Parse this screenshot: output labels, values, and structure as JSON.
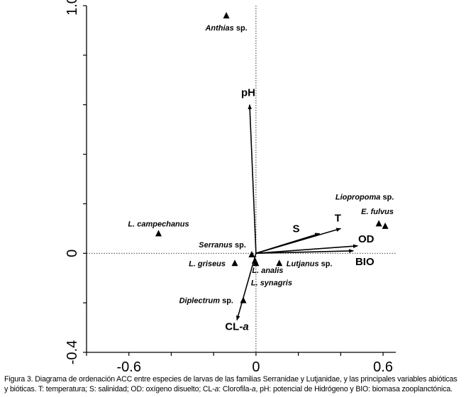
{
  "chart_data": {
    "type": "scatter",
    "subtype": "CCA ordination biplot",
    "xlim": [
      -0.8,
      0.66
    ],
    "ylim": [
      -0.4,
      1.0
    ],
    "x_ticks": [
      {
        "value": -0.6,
        "label": "-0.6"
      },
      {
        "value": 0,
        "label": "0"
      },
      {
        "value": 0.6,
        "label": "0.6"
      }
    ],
    "y_ticks": [
      {
        "value": -0.4,
        "label": "-0.4"
      },
      {
        "value": 0,
        "label": "0"
      },
      {
        "value": 1.0,
        "label": "1.0"
      }
    ],
    "minor_x_ticks": [
      -0.8,
      -0.6,
      -0.4,
      -0.2,
      0,
      0.2,
      0.4,
      0.6
    ],
    "minor_y_ticks": [
      -0.4,
      -0.2,
      0,
      0.2,
      0.4,
      0.6,
      0.8,
      1.0
    ],
    "reference_lines": "dotted lines at x=0 and y=0",
    "species": [
      {
        "label": "Anthias",
        "suffix": " sp.",
        "x": -0.14,
        "y": 0.96
      },
      {
        "label": "Liopropoma",
        "suffix": " sp.",
        "x": 0.58,
        "y": 0.12
      },
      {
        "label": "E. fulvus",
        "suffix": "",
        "x": 0.61,
        "y": 0.11
      },
      {
        "label": "L. campechanus",
        "suffix": "",
        "x": -0.46,
        "y": 0.08
      },
      {
        "label": "Serranus",
        "suffix": " sp.",
        "x": -0.02,
        "y": -0.005
      },
      {
        "label": "L. griseus",
        "suffix": "",
        "x": -0.1,
        "y": -0.04
      },
      {
        "label": "L. analis",
        "suffix": "",
        "x": -0.005,
        "y": -0.03
      },
      {
        "label": "L. synagris",
        "suffix": "",
        "x": 0.0,
        "y": -0.04
      },
      {
        "label": "Lutjanus",
        "suffix": " sp.",
        "x": 0.11,
        "y": -0.04
      },
      {
        "label": "Diplectrum",
        "suffix": " sp.",
        "x": -0.06,
        "y": -0.19
      }
    ],
    "variables": [
      {
        "name": "pH",
        "x": -0.03,
        "y": 0.6
      },
      {
        "name": "S",
        "x": 0.3,
        "y": 0.08
      },
      {
        "name": "T",
        "x": 0.4,
        "y": 0.1
      },
      {
        "name": "OD",
        "x": 0.48,
        "y": 0.03
      },
      {
        "name": "BIO",
        "x": 0.46,
        "y": 0.01
      },
      {
        "name": "CL-a",
        "x": -0.09,
        "y": -0.27
      }
    ]
  },
  "caption": {
    "line1_a": "Figura 3. Diagrama de ordenación ACC entre especies de larvas de las familias Serranidae y Lutjanidae, y las principales variables abióticas",
    "line2_a": "y bióticas. T: temperatura; S: salinidad; OD: oxígeno disuelto; CL-",
    "line2_a_italic": "a",
    "line2_b": ": Clorofila-",
    "line2_b_italic": "a",
    "line2_c": ", pH: potencial de Hidrógeno y BIO: biomasa zooplanctónica."
  }
}
